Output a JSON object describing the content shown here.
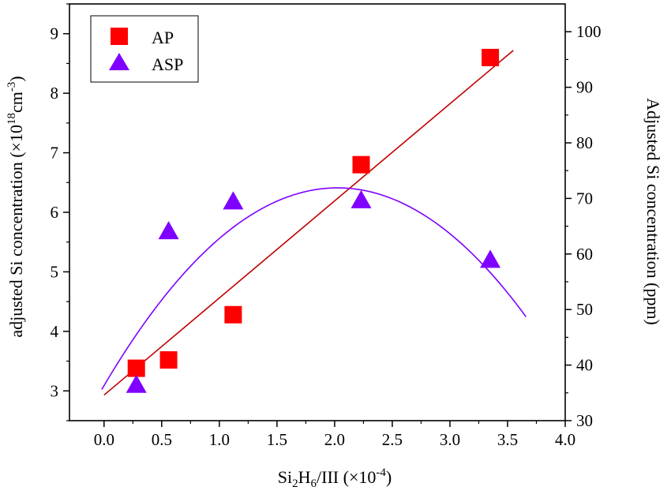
{
  "chart_data": {
    "type": "scatter",
    "x": [
      0.28,
      0.56,
      1.12,
      2.23,
      3.35
    ],
    "xlabel": {
      "base": "Si",
      "sub1": "2",
      "mid": "H",
      "sub2": "6",
      "rest": "/III (×10",
      "sup": "-4",
      "end": ")"
    },
    "ylabel_left": {
      "text": "adjusted Si concentration (×10",
      "sup1": "18",
      "mid": "cm",
      "sup2": "-3",
      "end": ")"
    },
    "ylabel_right": "Adjusted Si concentration (ppm)",
    "xlim": [
      -0.3,
      4.0
    ],
    "ylim_left": [
      2.5,
      9.5
    ],
    "ylim_right": [
      30,
      105
    ],
    "xticks": [
      "0.0",
      "0.5",
      "1.0",
      "1.5",
      "2.0",
      "2.5",
      "3.0",
      "3.5",
      "4.0"
    ],
    "xtick_values": [
      0,
      0.5,
      1,
      1.5,
      2,
      2.5,
      3,
      3.5,
      4
    ],
    "yticks_left": [
      "3",
      "4",
      "5",
      "6",
      "7",
      "8",
      "9"
    ],
    "ytick_left_values": [
      3,
      4,
      5,
      6,
      7,
      8,
      9
    ],
    "yticks_right": [
      "30",
      "40",
      "50",
      "60",
      "70",
      "80",
      "90",
      "100"
    ],
    "ytick_right_values": [
      30,
      40,
      50,
      60,
      70,
      80,
      90,
      100
    ],
    "legend_position": "top-left",
    "series": [
      {
        "name": "AP",
        "marker": "square",
        "color": "#ff0000",
        "values": [
          3.38,
          3.52,
          4.28,
          6.8,
          8.6
        ],
        "fit": {
          "type": "linear",
          "x_range": [
            0.0,
            3.55
          ],
          "y_range": [
            2.93,
            8.72
          ],
          "color": "#c00000"
        }
      },
      {
        "name": "ASP",
        "marker": "triangle",
        "color": "#7f00ff",
        "values": [
          3.1,
          5.68,
          6.18,
          6.2,
          5.2
        ],
        "fit": {
          "type": "quadratic",
          "coeffs": [
            3.09,
            3.28,
            -0.81
          ],
          "x_range": [
            -0.02,
            3.66
          ],
          "color": "#7f00ff"
        }
      }
    ]
  }
}
